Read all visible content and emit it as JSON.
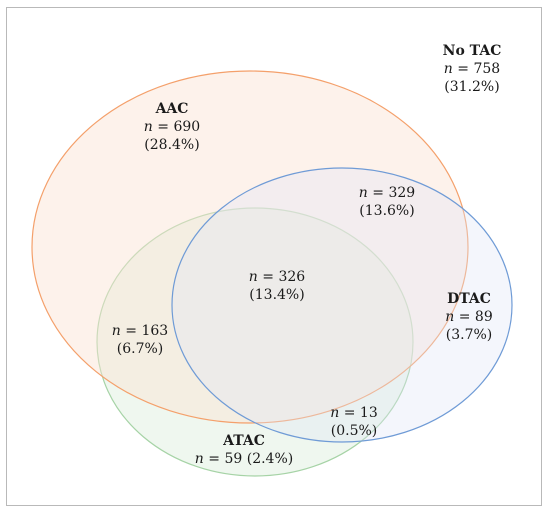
{
  "sets": {
    "aac": {
      "name": "AAC",
      "stroke": "#f4a06b",
      "fill": "#fbe3d3"
    },
    "dtac": {
      "name": "DTAC",
      "stroke": "#6f9bd6",
      "fill": "#dfe6f6"
    },
    "atac": {
      "name": "ATAC",
      "stroke": "#a6d3a6",
      "fill": "#e2f1e2"
    }
  },
  "regions": {
    "no_tac": {
      "name": "No TAC",
      "n": "758",
      "pct": "(31.2%)"
    },
    "aac_only": {
      "n": "690",
      "pct": "(28.4%)"
    },
    "aac_dtac": {
      "n": "329",
      "pct": "(13.6%)"
    },
    "all_three": {
      "n": "326",
      "pct": "(13.4%)"
    },
    "aac_atac": {
      "n": "163",
      "pct": "(6.7%)"
    },
    "dtac_only": {
      "n": "89",
      "pct": "(3.7%)"
    },
    "dtac_atac": {
      "n": "13",
      "pct": "(0.5%)"
    },
    "atac_only": {
      "n": "59",
      "pct": "(2.4%)"
    }
  },
  "n_symbol": "n",
  "eq": " = "
}
